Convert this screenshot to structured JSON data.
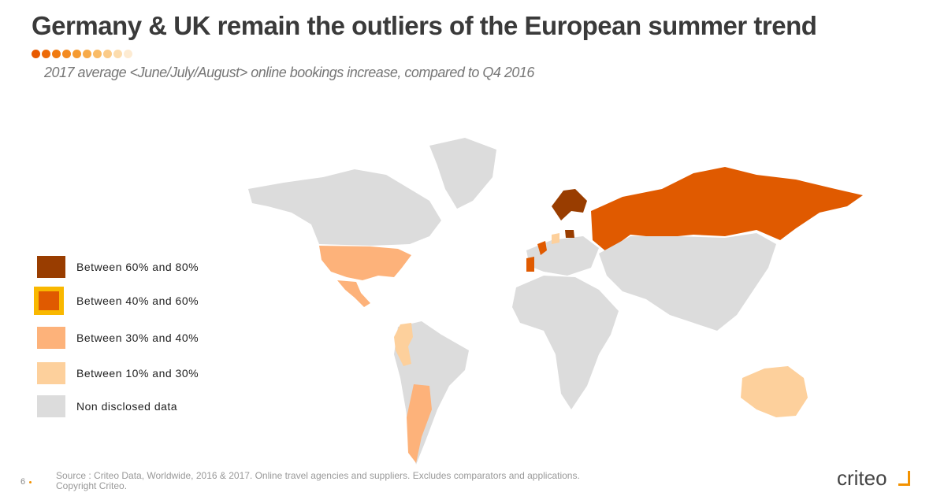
{
  "header": {
    "title": "Germany & UK remain the outliers of the European summer trend",
    "subtitle": "2017 average <June/July/August> online bookings increase, compared to Q4 2016"
  },
  "legend": [
    {
      "label": "Between 60% and 80%",
      "color": "#993d00"
    },
    {
      "label": "Between 40% and 60%",
      "color": "#e05a00",
      "border": "#f9b800"
    },
    {
      "label": "Between 30% and 40%",
      "color": "#fdb27a"
    },
    {
      "label": "Between 10% and 30%",
      "color": "#fdd09c"
    },
    {
      "label": "Non disclosed data",
      "color": "#dcdcdc"
    }
  ],
  "footer": {
    "page": "6",
    "source": "Source : Criteo Data, Worldwide, 2016 & 2017. Online travel agencies and suppliers. Excludes comparators and applications.",
    "copyright": "Copyright Criteo.",
    "logo": "criteo"
  }
}
